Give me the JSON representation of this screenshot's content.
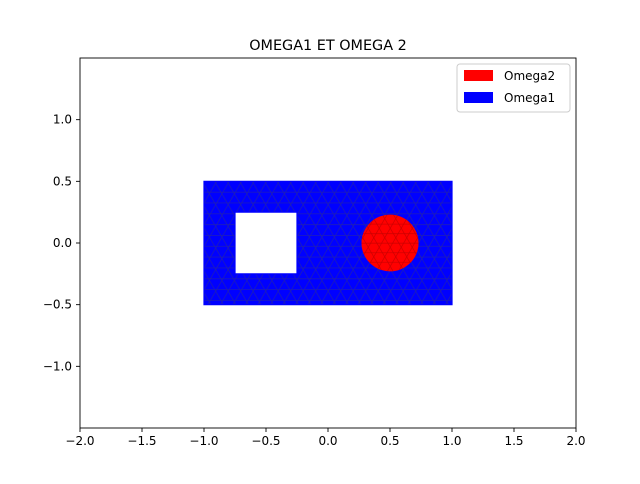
{
  "chart_data": {
    "type": "mesh",
    "title": "OMEGA1 ET OMEGA 2",
    "xlabel": "",
    "ylabel": "",
    "xlim": [
      -2.0,
      2.0
    ],
    "ylim": [
      -1.5,
      1.5
    ],
    "xticks": [
      -2.0,
      -1.5,
      -1.0,
      -0.5,
      0.0,
      0.5,
      1.0,
      1.5,
      2.0
    ],
    "xtick_labels": [
      "−2.0",
      "−1.5",
      "−1.0",
      "−0.5",
      "0.0",
      "0.5",
      "1.0",
      "1.5",
      "2.0"
    ],
    "yticks": [
      -1.0,
      -0.5,
      0.0,
      0.5,
      1.0
    ],
    "ytick_labels": [
      "−1.0",
      "−0.5",
      "0.0",
      "0.5",
      "1.0"
    ],
    "grid": false,
    "legend_position": "top-right",
    "regions": [
      {
        "name": "Omega1",
        "color": "#0000ff",
        "shape": "rectangle-with-square-hole",
        "outer": {
          "x": [
            -1.0,
            1.0
          ],
          "y": [
            -0.5,
            0.5
          ]
        },
        "hole": {
          "x": [
            -0.75,
            -0.25
          ],
          "y": [
            -0.25,
            0.25
          ]
        }
      },
      {
        "name": "Omega2",
        "color": "#ff0000",
        "shape": "disk",
        "center": [
          0.5,
          0.0
        ],
        "radius": 0.23
      }
    ],
    "legend": [
      {
        "label": "Omega2",
        "color": "#ff0000"
      },
      {
        "label": "Omega1",
        "color": "#0000ff"
      }
    ]
  }
}
